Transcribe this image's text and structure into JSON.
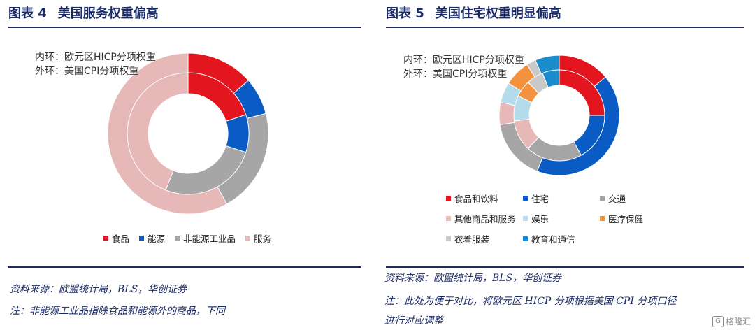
{
  "left": {
    "fig_no": "图表 4",
    "title": "美国服务权重偏高",
    "ring_inner_label": "内环：欧元区HICP分项权重",
    "ring_outer_label": "外环：美国CPI分项权重",
    "source": "资料来源：欧盟统计局，BLS，华创证券",
    "note": "注：非能源工业品指除食品和能源外的商品，下同"
  },
  "right": {
    "fig_no": "图表 5",
    "title": "美国住宅权重明显偏高",
    "ring_inner_label": "内环：欧元区HICP分项权重",
    "ring_outer_label": "外环：美国CPI分项权重",
    "source": "资料来源：欧盟统计局，BLS，华创证券",
    "note_line1": "注：此处为便于对比，将欧元区 HICP 分项根据美国 CPI 分项口径",
    "note_line2": "进行对应调整"
  },
  "watermark": "格隆汇",
  "chart_data": [
    {
      "type": "pie",
      "subtype": "nested-donut",
      "title": "美国服务权重偏高",
      "categories": [
        "食品",
        "能源",
        "非能源工业品",
        "服务"
      ],
      "colors": [
        "#e3161f",
        "#0a5cc4",
        "#a6a6a6",
        "#e6b8b8"
      ],
      "series": [
        {
          "name": "外环：美国CPI分项权重",
          "values": [
            13.5,
            7.5,
            21.0,
            58.0
          ]
        },
        {
          "name": "内环：欧元区HICP分项权重",
          "values": [
            20.0,
            10.0,
            26.0,
            44.0
          ]
        }
      ],
      "legend_position": "bottom"
    },
    {
      "type": "pie",
      "subtype": "nested-donut",
      "title": "美国住宅权重明显偏高",
      "categories": [
        "食品和饮料",
        "住宅",
        "交通",
        "其他商品和服务",
        "娱乐",
        "医疗保健",
        "衣着服装",
        "教育和通信"
      ],
      "colors": [
        "#e3161f",
        "#0a5cc4",
        "#a6a6a6",
        "#e6b8b8",
        "#b4dcea",
        "#f3923e",
        "#c9c9c9",
        "#1a8ccc"
      ],
      "series": [
        {
          "name": "外环：美国CPI分项权重",
          "values": [
            14.0,
            42.0,
            16.5,
            6.0,
            5.5,
            7.0,
            2.5,
            6.5
          ]
        },
        {
          "name": "内环：欧元区HICP分项权重",
          "values": [
            25.0,
            17.0,
            20.0,
            11.0,
            9.0,
            6.0,
            6.0,
            6.0
          ]
        }
      ],
      "legend_position": "bottom"
    }
  ]
}
